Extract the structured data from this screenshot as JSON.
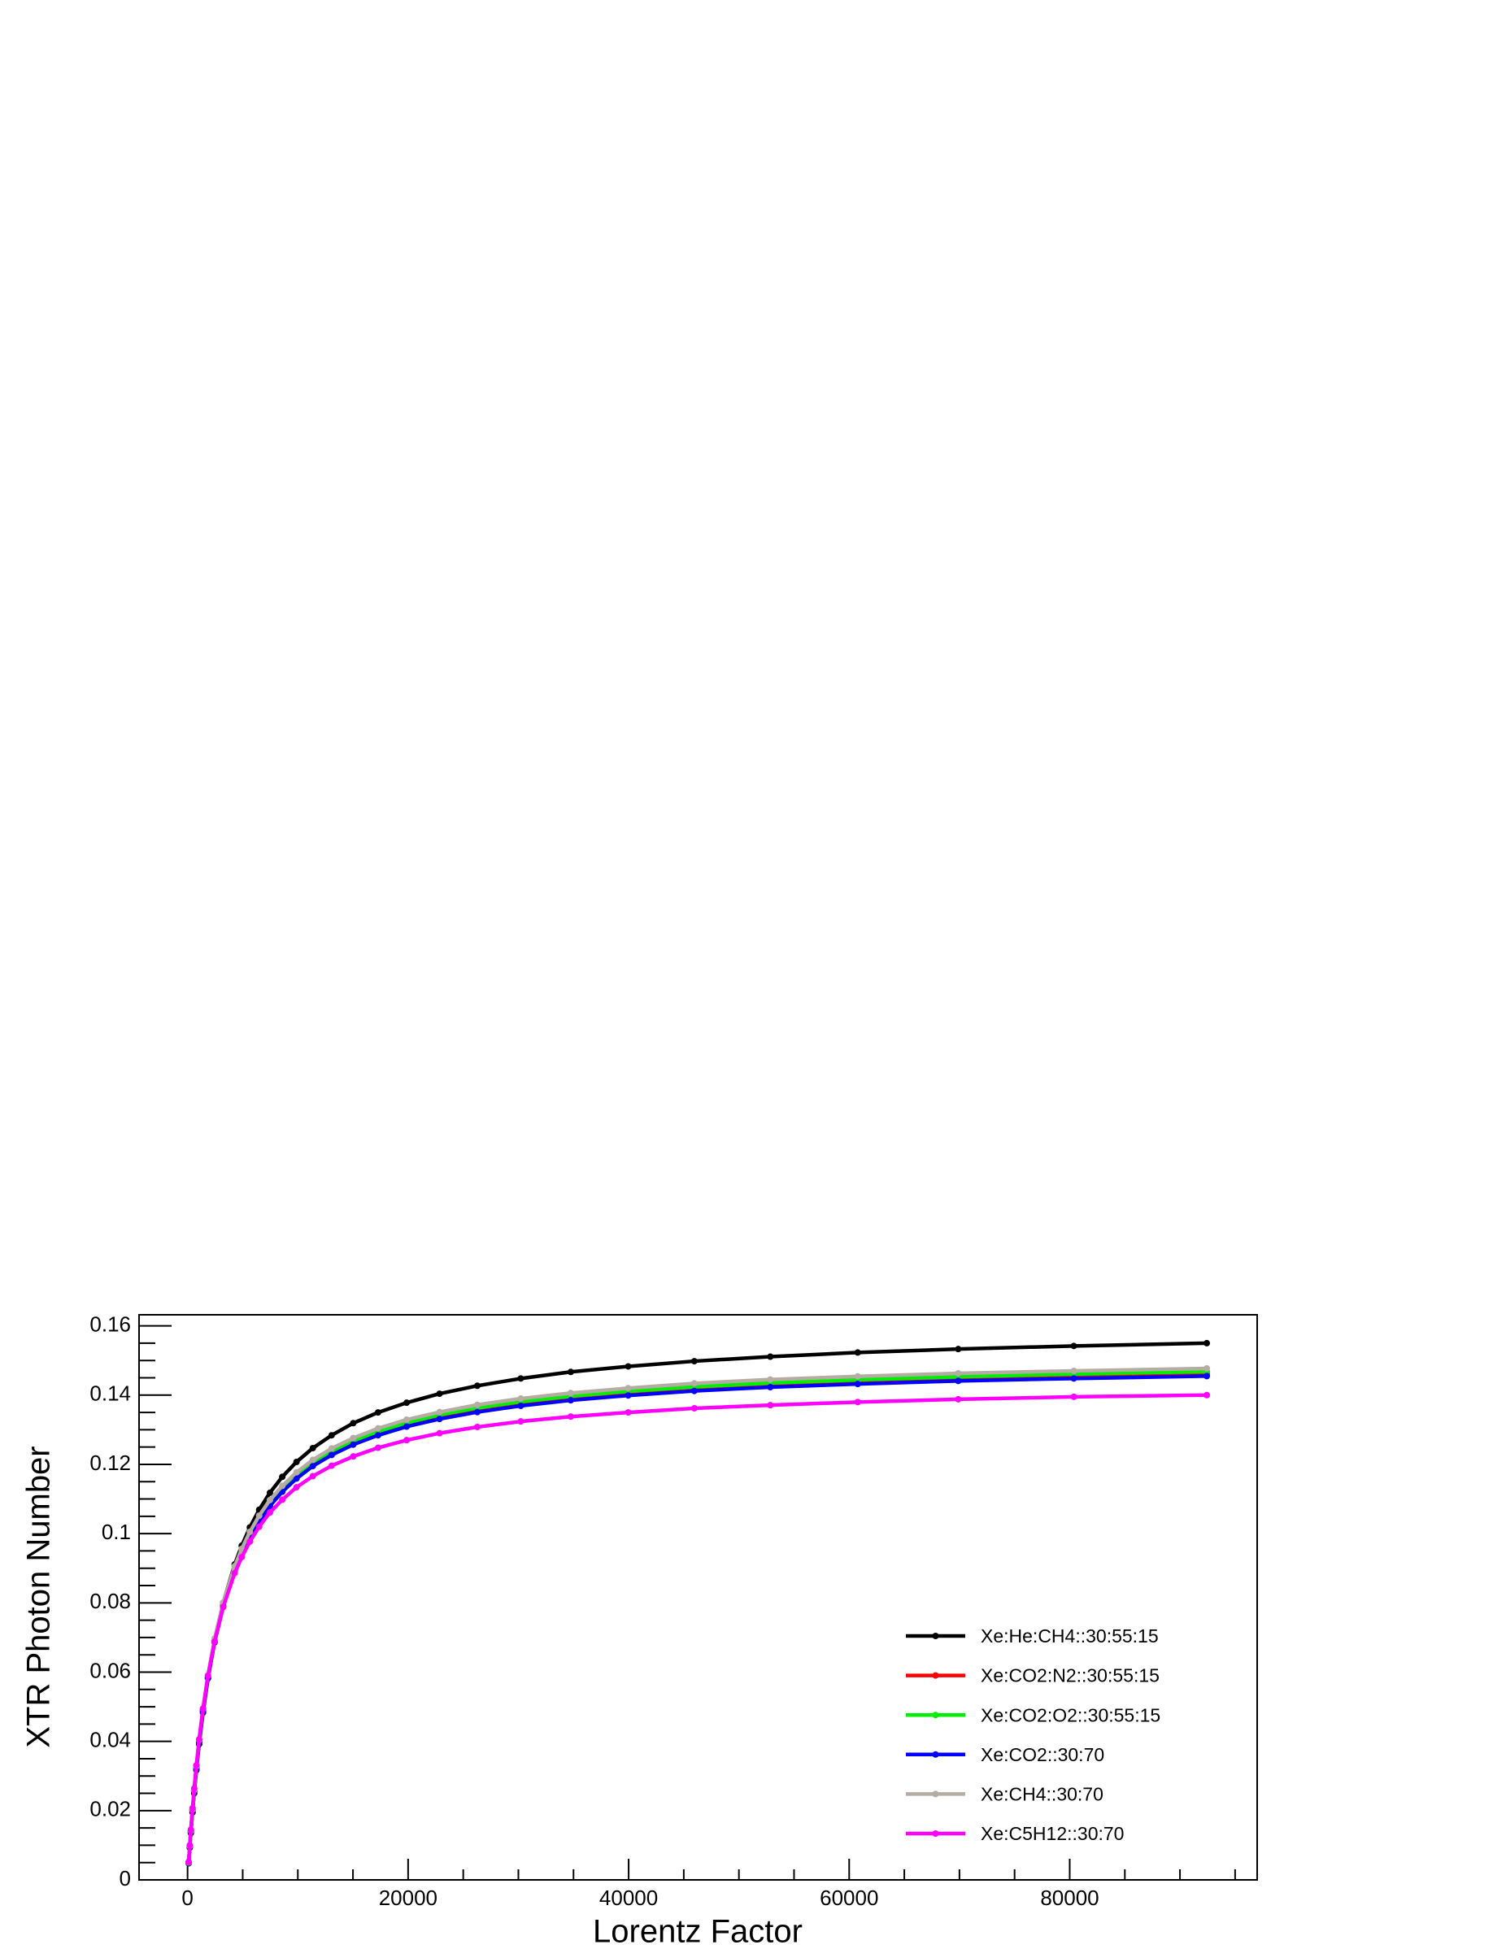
{
  "chart_data": {
    "type": "line",
    "x_label": "Lorentz Factor",
    "y_label": "XTR Photon Number",
    "x": [
      100,
      200,
      300,
      450,
      600,
      800,
      1050,
      1400,
      1850,
      2450,
      3230,
      4271,
      4911,
      5648,
      6495,
      7470,
      8590,
      9878,
      11360,
      13064,
      15023,
      17277,
      19868,
      22848,
      26275,
      30216,
      34748,
      39960,
      45954,
      52847,
      60774,
      69890,
      80374,
      92430
    ],
    "series": [
      {
        "name": "Xe:He:CH4::30:55:15",
        "color": "#000000",
        "values": [
          0.00479,
          0.0093,
          0.01355,
          0.0195,
          0.025,
          0.0317,
          0.0392,
          0.0483,
          0.0582,
          0.0689,
          0.08,
          0.0911,
          0.0965,
          0.1018,
          0.1069,
          0.1118,
          0.1164,
          0.1207,
          0.1247,
          0.1284,
          0.1319,
          0.135,
          0.1378,
          0.1404,
          0.1427,
          0.1448,
          0.1467,
          0.1483,
          0.1498,
          0.1511,
          0.1523,
          0.1533,
          0.1542,
          0.155
        ]
      },
      {
        "name": "Xe:CO2:N2::30:55:15",
        "color": "#ff0000",
        "values": [
          0.005,
          0.00968,
          0.0141,
          0.0202,
          0.0257,
          0.0325,
          0.04,
          0.0489,
          0.0586,
          0.0689,
          0.0793,
          0.0896,
          0.0946,
          0.0995,
          0.1041,
          0.1085,
          0.1126,
          0.1164,
          0.1201,
          0.1233,
          0.1263,
          0.129,
          0.1315,
          0.1337,
          0.1357,
          0.1375,
          0.1391,
          0.1406,
          0.1419,
          0.143,
          0.1439,
          0.1448,
          0.1455,
          0.1462
        ]
      },
      {
        "name": "Xe:CO2:O2::30:55:15",
        "color": "#00ee00",
        "values": [
          0.00502,
          0.00972,
          0.0141,
          0.0203,
          0.0258,
          0.0326,
          0.0401,
          0.0491,
          0.0588,
          0.0692,
          0.0796,
          0.09,
          0.095,
          0.0999,
          0.1045,
          0.1089,
          0.1131,
          0.1169,
          0.1205,
          0.1238,
          0.1268,
          0.1295,
          0.132,
          0.1343,
          0.1363,
          0.1381,
          0.1397,
          0.1411,
          0.1424,
          0.1435,
          0.1444,
          0.1453,
          0.1461,
          0.1468
        ]
      },
      {
        "name": "Xe:CO2::30:70",
        "color": "#0000ff",
        "values": [
          0.00498,
          0.00964,
          0.014,
          0.0201,
          0.0256,
          0.0323,
          0.0398,
          0.0487,
          0.0583,
          0.0686,
          0.0789,
          0.0892,
          0.0942,
          0.099,
          0.1036,
          0.108,
          0.1121,
          0.1159,
          0.1195,
          0.1227,
          0.1257,
          0.1284,
          0.1309,
          0.1331,
          0.1351,
          0.1369,
          0.1385,
          0.1399,
          0.1412,
          0.1423,
          0.1432,
          0.1441,
          0.1448,
          0.1455
        ]
      },
      {
        "name": "Xe:CH4::30:70",
        "color": "#b5aca4",
        "values": [
          0.00506,
          0.00979,
          0.0142,
          0.0204,
          0.026,
          0.0328,
          0.0404,
          0.0494,
          0.0592,
          0.0697,
          0.0801,
          0.0906,
          0.0956,
          0.1005,
          0.1052,
          0.1097,
          0.1138,
          0.1177,
          0.1213,
          0.1246,
          0.1276,
          0.1304,
          0.1329,
          0.1351,
          0.1372,
          0.139,
          0.1406,
          0.142,
          0.1434,
          0.1445,
          0.1454,
          0.1463,
          0.147,
          0.1477
        ]
      },
      {
        "name": "Xe:C5H12::30:70",
        "color": "#ff00ff",
        "values": [
          0.00519,
          0.01,
          0.0145,
          0.0207,
          0.0264,
          0.0331,
          0.0406,
          0.0495,
          0.0589,
          0.0688,
          0.0788,
          0.0886,
          0.0932,
          0.0977,
          0.102,
          0.1061,
          0.1098,
          0.1134,
          0.1166,
          0.1196,
          0.1223,
          0.1248,
          0.127,
          0.129,
          0.1308,
          0.1324,
          0.1338,
          0.135,
          0.1362,
          0.1371,
          0.138,
          0.1388,
          0.1395,
          0.14
        ]
      }
    ],
    "xlim": [
      -4400,
      97000
    ],
    "ylim": [
      0,
      0.1632
    ],
    "xticks": [
      0,
      20000,
      40000,
      60000,
      80000
    ],
    "yticks": [
      0,
      0.02,
      0.04,
      0.06,
      0.08,
      0.1,
      0.12,
      0.14,
      0.16
    ],
    "xminorticks": [
      5000,
      10000,
      15000,
      25000,
      30000,
      35000,
      45000,
      50000,
      55000,
      65000,
      70000,
      75000,
      85000,
      90000,
      95000
    ],
    "yminorticks": [
      0.005,
      0.01,
      0.015,
      0.025,
      0.03,
      0.035,
      0.045,
      0.05,
      0.055,
      0.065,
      0.07,
      0.075,
      0.085,
      0.09,
      0.095,
      0.105,
      0.11,
      0.115,
      0.125,
      0.13,
      0.135,
      0.145,
      0.15,
      0.155
    ],
    "grid": false,
    "markers": true,
    "legend": "lower right"
  }
}
